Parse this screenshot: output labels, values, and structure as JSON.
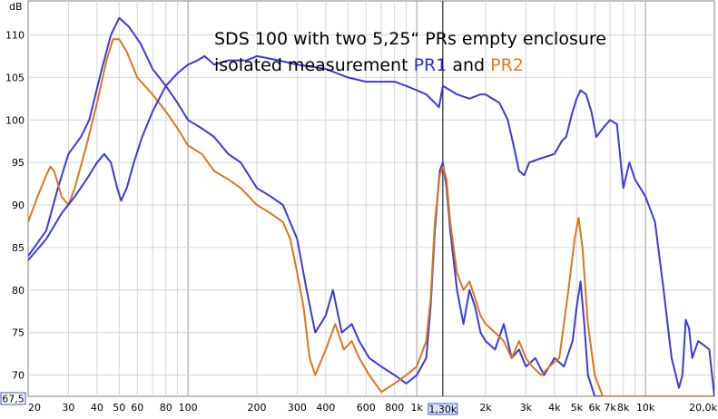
{
  "chart_data": {
    "type": "line",
    "title": {
      "line1": "SDS 100 with two 5,25“ PRs empty enclosure",
      "line2_prefix": "isolated measurement ",
      "line2_pr1": "PR1",
      "line2_mid": " and ",
      "line2_pr2": "PR2"
    },
    "ylabel": "dB",
    "xscale": "log",
    "xlim": [
      20,
      20000
    ],
    "ylim": [
      67.5,
      114
    ],
    "grid": true,
    "y_ticks": [
      70,
      75,
      80,
      85,
      90,
      95,
      100,
      105,
      110
    ],
    "y_tick_labels": [
      "70",
      "75",
      "80",
      "85",
      "90",
      "95",
      "100",
      "105",
      "110"
    ],
    "y_min_readout": "67,5",
    "x_ticks": [
      {
        "value": 20,
        "label": "20"
      },
      {
        "value": 30,
        "label": "30"
      },
      {
        "value": 40,
        "label": "40"
      },
      {
        "value": 50,
        "label": "50"
      },
      {
        "value": 60,
        "label": "60"
      },
      {
        "value": 80,
        "label": "80"
      },
      {
        "value": 100,
        "label": "100"
      },
      {
        "value": 200,
        "label": "200"
      },
      {
        "value": 300,
        "label": "300"
      },
      {
        "value": 400,
        "label": "400"
      },
      {
        "value": 600,
        "label": "600"
      },
      {
        "value": 800,
        "label": "800"
      },
      {
        "value": 1000,
        "label": "1k"
      },
      {
        "value": 2000,
        "label": "2k"
      },
      {
        "value": 3000,
        "label": "3k"
      },
      {
        "value": 4000,
        "label": "4k"
      },
      {
        "value": 5000,
        "label": "5k"
      },
      {
        "value": 6000,
        "label": "6k"
      },
      {
        "value": 7000,
        "label": "7k"
      },
      {
        "value": 8000,
        "label": "8k"
      },
      {
        "value": 10000,
        "label": "10k"
      },
      {
        "value": 20000,
        "label": "20,0k"
      }
    ],
    "cursor": {
      "x": 1300,
      "label": "1,30k"
    },
    "series": [
      {
        "name": "PR1",
        "color": "#3b3bd6",
        "points": [
          [
            20,
            84
          ],
          [
            24,
            87
          ],
          [
            27,
            92
          ],
          [
            30,
            96
          ],
          [
            34,
            98
          ],
          [
            37,
            100
          ],
          [
            42,
            106
          ],
          [
            46,
            110
          ],
          [
            50,
            112
          ],
          [
            55,
            111
          ],
          [
            62,
            109
          ],
          [
            70,
            106
          ],
          [
            80,
            104
          ],
          [
            90,
            102
          ],
          [
            100,
            100
          ],
          [
            115,
            99
          ],
          [
            130,
            98
          ],
          [
            150,
            96
          ],
          [
            170,
            95
          ],
          [
            200,
            92
          ],
          [
            230,
            91
          ],
          [
            260,
            90
          ],
          [
            300,
            86
          ],
          [
            330,
            80
          ],
          [
            360,
            75
          ],
          [
            400,
            77
          ],
          [
            430,
            80
          ],
          [
            470,
            75
          ],
          [
            520,
            76
          ],
          [
            560,
            74
          ],
          [
            620,
            72
          ],
          [
            700,
            71
          ],
          [
            800,
            70
          ],
          [
            900,
            69
          ],
          [
            1000,
            70
          ],
          [
            1100,
            72
          ],
          [
            1150,
            78
          ],
          [
            1200,
            87
          ],
          [
            1260,
            94
          ],
          [
            1300,
            95
          ],
          [
            1350,
            92
          ],
          [
            1400,
            87
          ],
          [
            1500,
            80
          ],
          [
            1600,
            76
          ],
          [
            1700,
            80
          ],
          [
            1800,
            78
          ],
          [
            1900,
            75
          ],
          [
            2000,
            74
          ],
          [
            2200,
            73
          ],
          [
            2400,
            76
          ],
          [
            2600,
            72
          ],
          [
            2800,
            73
          ],
          [
            3000,
            71
          ],
          [
            3300,
            72
          ],
          [
            3600,
            70
          ],
          [
            4000,
            72
          ],
          [
            4400,
            71
          ],
          [
            4800,
            74
          ],
          [
            5000,
            78
          ],
          [
            5200,
            81
          ],
          [
            5400,
            76
          ],
          [
            5600,
            70
          ],
          [
            6000,
            67.5
          ],
          [
            20000,
            67.5
          ]
        ]
      },
      {
        "name": "PR2",
        "color": "#d9771e",
        "points": [
          [
            20,
            88
          ],
          [
            22,
            91
          ],
          [
            24,
            93.5
          ],
          [
            25,
            94.5
          ],
          [
            26,
            94
          ],
          [
            28,
            91
          ],
          [
            30,
            90
          ],
          [
            32,
            92
          ],
          [
            36,
            97
          ],
          [
            40,
            102
          ],
          [
            44,
            107
          ],
          [
            47,
            109.5
          ],
          [
            50,
            109.5
          ],
          [
            54,
            108
          ],
          [
            60,
            105
          ],
          [
            70,
            103
          ],
          [
            80,
            101
          ],
          [
            90,
            99
          ],
          [
            100,
            97
          ],
          [
            115,
            96
          ],
          [
            130,
            94
          ],
          [
            150,
            93
          ],
          [
            170,
            92
          ],
          [
            200,
            90
          ],
          [
            230,
            89
          ],
          [
            260,
            88
          ],
          [
            280,
            86
          ],
          [
            300,
            82
          ],
          [
            320,
            78
          ],
          [
            340,
            72
          ],
          [
            360,
            70
          ],
          [
            400,
            73
          ],
          [
            440,
            76
          ],
          [
            480,
            73
          ],
          [
            520,
            74
          ],
          [
            560,
            72
          ],
          [
            620,
            70
          ],
          [
            700,
            68
          ],
          [
            800,
            69
          ],
          [
            900,
            70
          ],
          [
            1000,
            71
          ],
          [
            1100,
            74
          ],
          [
            1150,
            79
          ],
          [
            1200,
            88
          ],
          [
            1260,
            93.5
          ],
          [
            1300,
            94.5
          ],
          [
            1350,
            93
          ],
          [
            1400,
            88
          ],
          [
            1500,
            82
          ],
          [
            1600,
            80
          ],
          [
            1700,
            81
          ],
          [
            1800,
            79
          ],
          [
            1900,
            77
          ],
          [
            2000,
            76
          ],
          [
            2200,
            75
          ],
          [
            2400,
            74
          ],
          [
            2600,
            72
          ],
          [
            2800,
            74
          ],
          [
            3000,
            72
          ],
          [
            3200,
            71
          ],
          [
            3500,
            70
          ],
          [
            3800,
            71
          ],
          [
            4200,
            72
          ],
          [
            4600,
            80
          ],
          [
            4900,
            86
          ],
          [
            5100,
            88.5
          ],
          [
            5300,
            85
          ],
          [
            5600,
            76
          ],
          [
            6000,
            70
          ],
          [
            6500,
            67.5
          ],
          [
            20000,
            67.5
          ]
        ]
      },
      {
        "name": "",
        "color": "#3b3bd6",
        "points": [
          [
            20,
            83.5
          ],
          [
            24,
            86
          ],
          [
            28,
            89
          ],
          [
            32,
            91
          ],
          [
            36,
            93
          ],
          [
            40,
            95
          ],
          [
            43,
            96
          ],
          [
            46,
            95
          ],
          [
            49,
            92
          ],
          [
            51,
            90.5
          ],
          [
            54,
            92
          ],
          [
            58,
            95
          ],
          [
            63,
            98
          ],
          [
            70,
            101
          ],
          [
            80,
            104
          ],
          [
            90,
            105.5
          ],
          [
            100,
            106.5
          ],
          [
            110,
            107
          ],
          [
            118,
            107.5
          ],
          [
            130,
            106.5
          ],
          [
            150,
            107
          ],
          [
            180,
            107
          ],
          [
            200,
            107.5
          ],
          [
            250,
            107
          ],
          [
            300,
            106.5
          ],
          [
            400,
            106
          ],
          [
            500,
            105
          ],
          [
            600,
            104.5
          ],
          [
            700,
            104.5
          ],
          [
            800,
            104.5
          ],
          [
            900,
            104
          ],
          [
            1000,
            103.5
          ],
          [
            1100,
            103
          ],
          [
            1200,
            102
          ],
          [
            1250,
            101.5
          ],
          [
            1300,
            104
          ],
          [
            1400,
            103.5
          ],
          [
            1500,
            103
          ],
          [
            1700,
            102.5
          ],
          [
            1900,
            103
          ],
          [
            2000,
            103
          ],
          [
            2300,
            102
          ],
          [
            2500,
            100
          ],
          [
            2650,
            97
          ],
          [
            2800,
            94
          ],
          [
            2950,
            93.5
          ],
          [
            3100,
            95
          ],
          [
            3500,
            95.5
          ],
          [
            4000,
            96
          ],
          [
            4300,
            97.5
          ],
          [
            4500,
            98
          ],
          [
            4800,
            101
          ],
          [
            5000,
            102.5
          ],
          [
            5200,
            103.5
          ],
          [
            5500,
            103
          ],
          [
            5800,
            101
          ],
          [
            6100,
            98
          ],
          [
            6500,
            99
          ],
          [
            7000,
            100
          ],
          [
            7500,
            99.5
          ],
          [
            8000,
            92
          ],
          [
            8500,
            95
          ],
          [
            9000,
            93
          ],
          [
            10000,
            91
          ],
          [
            11000,
            88
          ],
          [
            12000,
            80
          ],
          [
            13000,
            72
          ],
          [
            14000,
            68.5
          ],
          [
            14500,
            70
          ],
          [
            15000,
            76.5
          ],
          [
            15500,
            75.5
          ],
          [
            16000,
            72
          ],
          [
            17000,
            74
          ],
          [
            18000,
            73.5
          ],
          [
            19000,
            73
          ],
          [
            20000,
            67.5
          ]
        ]
      }
    ]
  }
}
